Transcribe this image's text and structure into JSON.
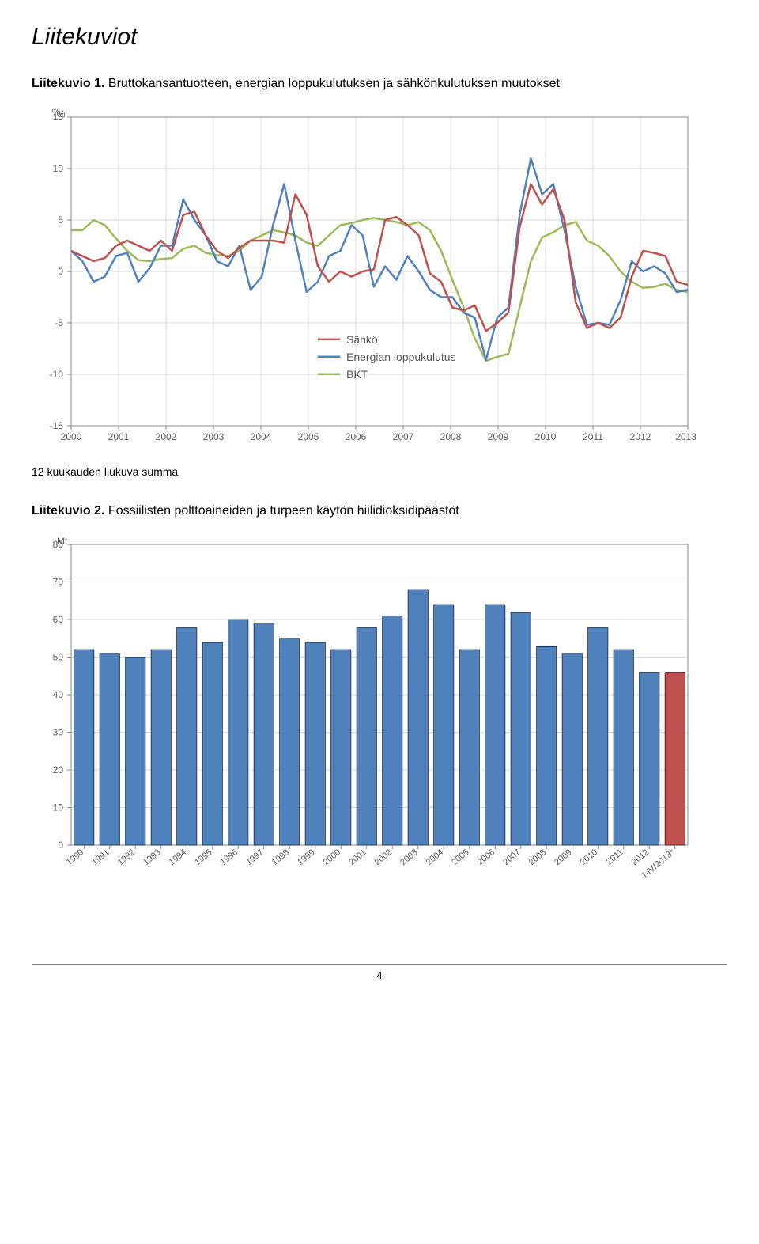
{
  "page_title": "Liitekuviot",
  "caption1_prefix": "Liitekuvio 1.",
  "caption1_rest": " Bruttokansantuotteen, energian loppukulutuksen ja sähkönkulutuksen muutokset",
  "note1": "12 kuukauden liukuva summa",
  "caption2_prefix": "Liitekuvio 2.",
  "caption2_rest": " Fossiilisten polttoaineiden ja turpeen käytön hiilidioksidipäästöt",
  "page_number": "4",
  "chart1": {
    "type": "line",
    "y_unit": "%",
    "ylim": [
      -15,
      15
    ],
    "ytick_step": 5,
    "x_labels": [
      "2000",
      "2001",
      "2002",
      "2003",
      "2004",
      "2005",
      "2006",
      "2007",
      "2008",
      "2009",
      "2010",
      "2011",
      "2012",
      "2013*"
    ],
    "grid_color": "#d9d9d9",
    "border_color": "#8a8a8a",
    "background": "#ffffff",
    "axis_fontsize": 12,
    "line_width": 2.5,
    "legend": {
      "items": [
        {
          "label": "Sähkö",
          "color": "#c0504d"
        },
        {
          "label": "Energian loppukulutus",
          "color": "#4f81bd"
        },
        {
          "label": "BKT",
          "color": "#9bbb59"
        }
      ]
    },
    "series": {
      "sahko": {
        "color": "#c0504d",
        "values": [
          2.0,
          1.5,
          1.0,
          1.3,
          2.5,
          3.0,
          2.5,
          2.0,
          3.0,
          2.0,
          5.5,
          5.8,
          3.5,
          2.0,
          1.3,
          2.3,
          3.0,
          3.0,
          3.0,
          2.8,
          7.5,
          5.5,
          0.5,
          -1.0,
          0.0,
          -0.5,
          0.0,
          0.2,
          5.0,
          5.3,
          4.5,
          3.5,
          -0.2,
          -1.0,
          -3.5,
          -3.8,
          -3.3,
          -5.8,
          -5.0,
          -4.0,
          4.3,
          8.5,
          6.5,
          8.0,
          5.0,
          -3.0,
          -5.5,
          -5.0,
          -5.5,
          -4.5,
          -0.5,
          2.0,
          1.8,
          1.5,
          -1.0,
          -1.3
        ]
      },
      "energian": {
        "color": "#4f81bd",
        "values": [
          2.0,
          1.0,
          -1.0,
          -0.5,
          1.5,
          1.8,
          -1.0,
          0.3,
          2.5,
          2.5,
          7.0,
          5.0,
          3.5,
          1.0,
          0.5,
          2.5,
          -1.8,
          -0.5,
          4.5,
          8.5,
          3.0,
          -2.0,
          -1.0,
          1.5,
          2.0,
          4.5,
          3.5,
          -1.5,
          0.5,
          -0.8,
          1.5,
          0.0,
          -1.8,
          -2.5,
          -2.5,
          -4.0,
          -4.5,
          -8.6,
          -4.5,
          -3.5,
          5.5,
          11.0,
          7.5,
          8.5,
          4.0,
          -1.5,
          -5.2,
          -5.0,
          -5.2,
          -2.8,
          1.0,
          0.0,
          0.5,
          -0.2,
          -2.0,
          -1.8
        ]
      },
      "bkt": {
        "color": "#9bbb59",
        "values": [
          4.0,
          4.0,
          5.0,
          4.5,
          3.2,
          2.0,
          1.1,
          1.0,
          1.2,
          1.3,
          2.2,
          2.5,
          1.8,
          1.6,
          1.5,
          2.0,
          3.0,
          3.5,
          4.0,
          3.8,
          3.5,
          2.8,
          2.5,
          3.5,
          4.5,
          4.7,
          5.0,
          5.2,
          5.0,
          4.8,
          4.5,
          4.8,
          4.0,
          2.0,
          -0.8,
          -3.5,
          -6.5,
          -8.7,
          -8.3,
          -8.0,
          -3.5,
          1.0,
          3.3,
          3.8,
          4.5,
          4.8,
          3.0,
          2.5,
          1.5,
          0.0,
          -1.0,
          -1.6,
          -1.5,
          -1.2,
          -1.8,
          -2.0
        ]
      }
    }
  },
  "chart2": {
    "type": "bar",
    "y_unit": "Mt",
    "ylim": [
      0,
      80
    ],
    "ytick_step": 10,
    "grid_color": "#d9d9d9",
    "border_color": "#8a8a8a",
    "background": "#ffffff",
    "axis_fontsize": 12,
    "bar_color": "#4f81bd",
    "bar_color_last": "#c0504d",
    "bar_border": "#000000",
    "bar_width": 0.78,
    "categories": [
      "1990",
      "1991",
      "1992",
      "1993",
      "1994",
      "1995",
      "1996",
      "1997",
      "1998",
      "1999",
      "2000",
      "2001",
      "2002",
      "2003",
      "2004",
      "2005",
      "2006",
      "2007",
      "2008",
      "2009",
      "2010",
      "2011",
      "2012",
      "I-IV/2013*"
    ],
    "values": [
      52,
      51,
      50,
      52,
      58,
      54,
      60,
      59,
      55,
      54,
      52,
      58,
      61,
      68,
      64,
      52,
      64,
      62,
      53,
      51,
      58,
      52,
      46,
      46
    ]
  }
}
